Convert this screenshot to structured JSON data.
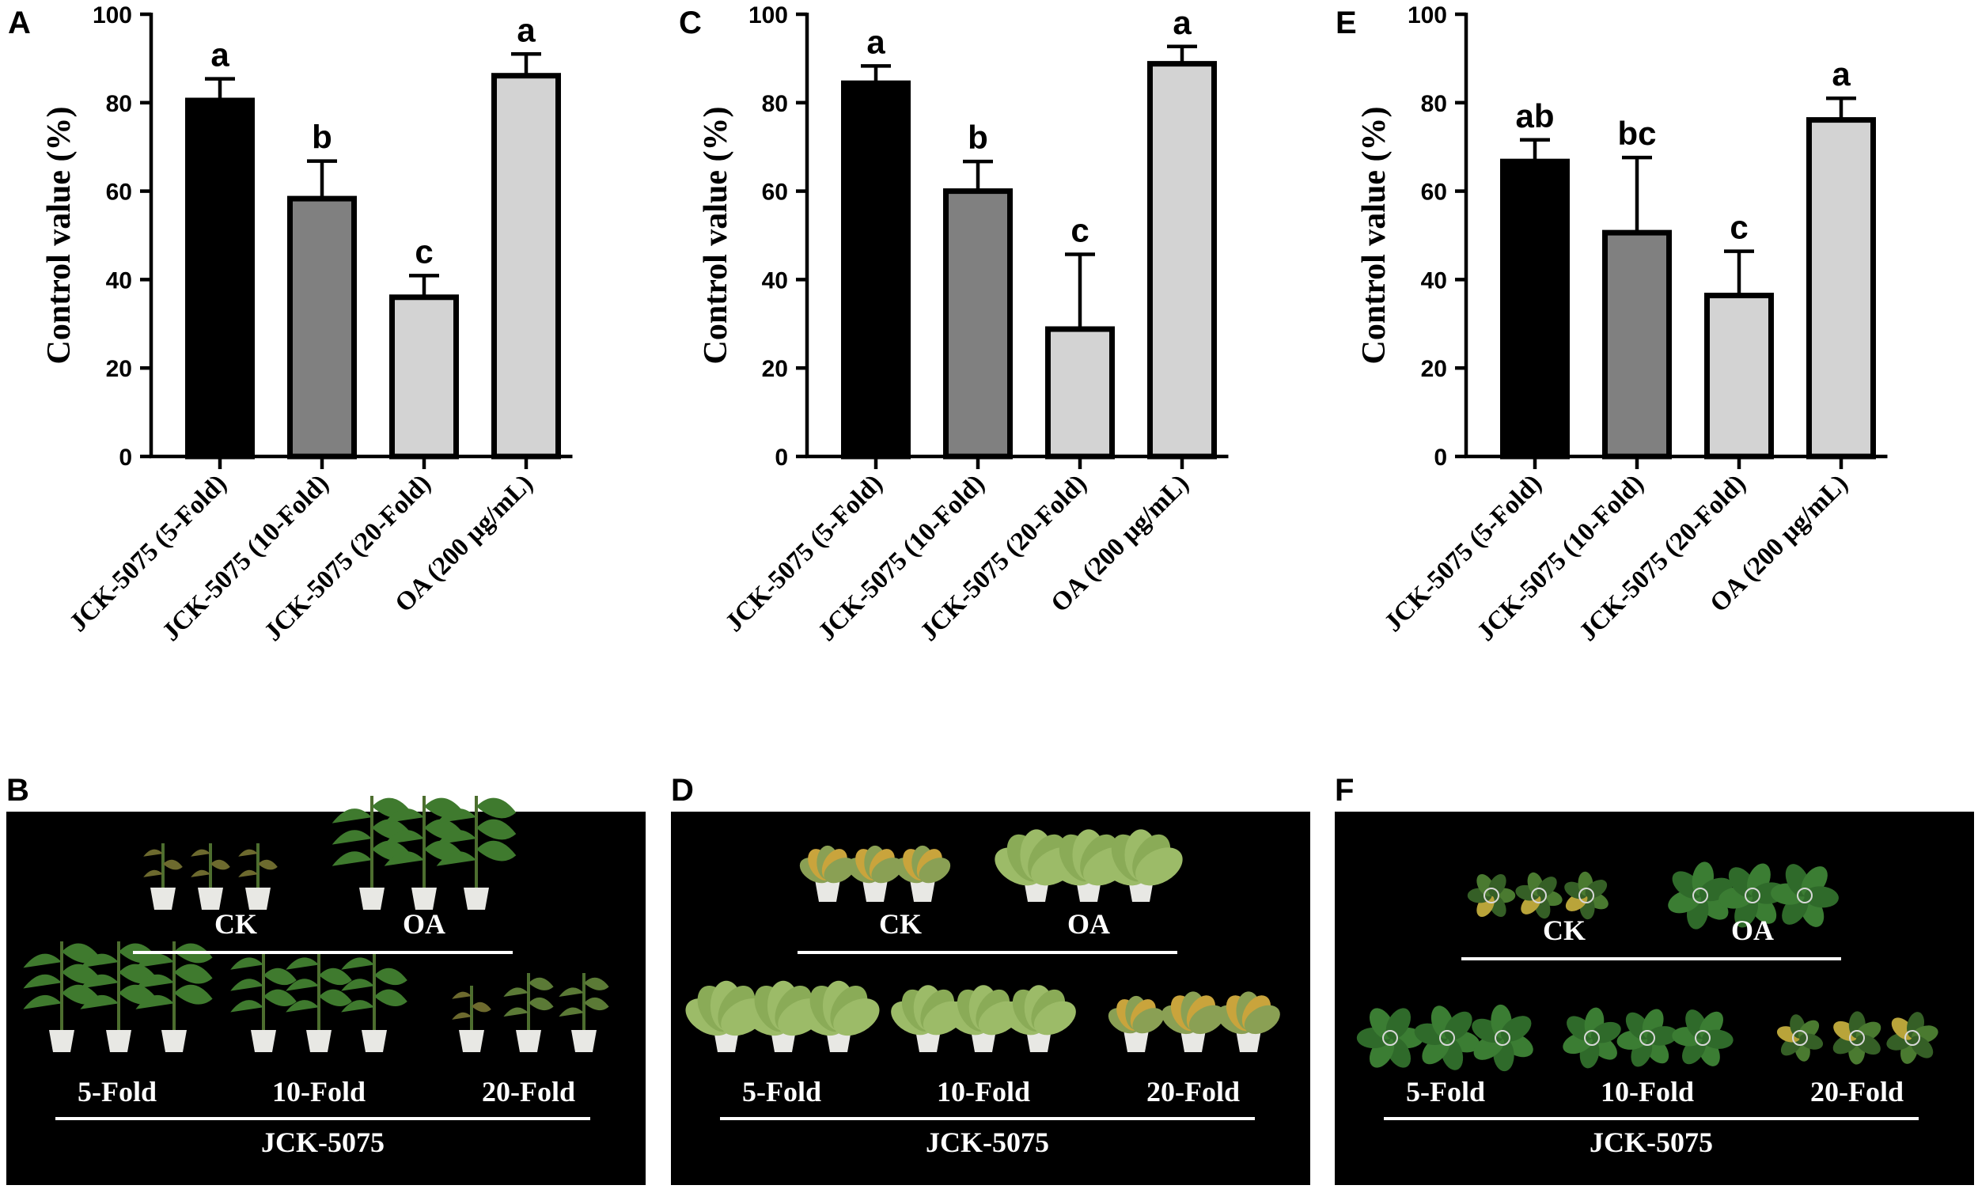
{
  "chart_data": [
    {
      "type": "bar",
      "panel": "A",
      "ylabel": "Control value (%)",
      "ylim": [
        0,
        100
      ],
      "yticks": [
        0,
        20,
        40,
        60,
        80,
        100
      ],
      "categories": [
        "JCK-5075 (5-Fold)",
        "JCK-5075 (10-Fold)",
        "JCK-5075 (20-Fold)",
        "OA (200 µg/mL)"
      ],
      "values": [
        80.5,
        58.3,
        36.0,
        86.1
      ],
      "errors": [
        4.9,
        8.5,
        4.9,
        4.9
      ],
      "significance": [
        "a",
        "b",
        "c",
        "a"
      ],
      "colors": [
        "#000000",
        "#808080",
        "#d3d3d3",
        "#d3d3d3"
      ]
    },
    {
      "type": "bar",
      "panel": "C",
      "ylabel": "Control value (%)",
      "ylim": [
        0,
        100
      ],
      "yticks": [
        0,
        20,
        40,
        60,
        80,
        100
      ],
      "categories": [
        "JCK-5075 (5-Fold)",
        "JCK-5075 (10-Fold)",
        "JCK-5075 (20-Fold)",
        "OA (200 µg/mL)"
      ],
      "values": [
        84.4,
        60.0,
        28.8,
        88.8
      ],
      "errors": [
        3.9,
        6.7,
        16.9,
        3.9
      ],
      "significance": [
        "a",
        "b",
        "c",
        "a"
      ],
      "colors": [
        "#000000",
        "#808080",
        "#d3d3d3",
        "#d3d3d3"
      ]
    },
    {
      "type": "bar",
      "panel": "E",
      "ylabel": "Control value (%)",
      "ylim": [
        0,
        100
      ],
      "yticks": [
        0,
        20,
        40,
        60,
        80,
        100
      ],
      "categories": [
        "JCK-5075 (5-Fold)",
        "JCK-5075 (10-Fold)",
        "JCK-5075 (20-Fold)",
        "OA (200 µg/mL)"
      ],
      "values": [
        66.7,
        50.6,
        36.4,
        76.1
      ],
      "errors": [
        4.9,
        17.0,
        10.0,
        4.9
      ],
      "significance": [
        "ab",
        "bc",
        "c",
        "a"
      ],
      "colors": [
        "#000000",
        "#808080",
        "#d3d3d3",
        "#d3d3d3"
      ]
    }
  ],
  "photos": [
    {
      "panel": "B",
      "top_labels": [
        "CK",
        "OA"
      ],
      "bottom_labels": [
        "5-Fold",
        "10-Fold",
        "20-Fold"
      ],
      "group_label": "JCK-5075"
    },
    {
      "panel": "D",
      "top_labels": [
        "CK",
        "OA"
      ],
      "bottom_labels": [
        "5-Fold",
        "10-Fold",
        "20-Fold"
      ],
      "group_label": "JCK-5075"
    },
    {
      "panel": "F",
      "top_labels": [
        "CK",
        "OA"
      ],
      "bottom_labels": [
        "5-Fold",
        "10-Fold",
        "20-Fold"
      ],
      "group_label": "JCK-5075"
    }
  ]
}
